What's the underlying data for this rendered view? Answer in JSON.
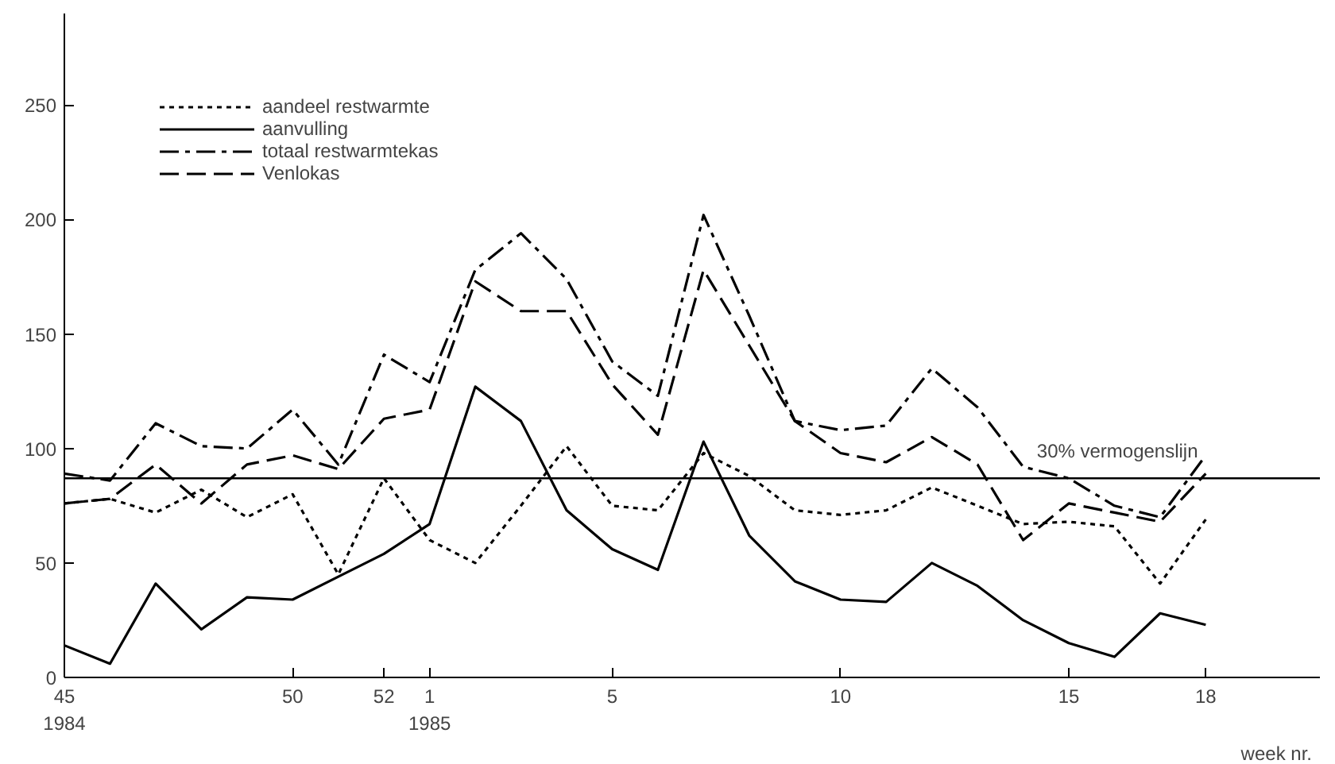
{
  "chart_data": {
    "type": "line",
    "xlabel": "week nr.",
    "categories": [
      "45\n1984",
      null,
      null,
      null,
      null,
      "50",
      null,
      "52",
      "1\n1985",
      null,
      null,
      null,
      "5",
      null,
      null,
      null,
      null,
      "10",
      null,
      null,
      null,
      null,
      "15",
      null,
      null,
      "18"
    ],
    "ylim": [
      0,
      290
    ],
    "yticks": [
      0,
      50,
      100,
      150,
      200,
      250
    ],
    "series": [
      {
        "name": "aandeel restwarmte",
        "color": "#000000",
        "line_style": "dotted",
        "values": [
          76,
          78,
          72,
          82,
          70,
          80,
          45,
          87,
          60,
          50,
          75,
          101,
          75,
          73,
          98,
          88,
          73,
          71,
          73,
          83,
          75,
          67,
          68,
          66,
          41,
          69
        ]
      },
      {
        "name": "aanvulling",
        "color": "#000000",
        "line_style": "solid",
        "values": [
          14,
          6,
          41,
          21,
          35,
          34,
          44,
          54,
          67,
          127,
          112,
          73,
          56,
          47,
          103,
          62,
          42,
          34,
          33,
          50,
          40,
          25,
          15,
          9,
          28,
          23
        ]
      },
      {
        "name": "totaal restwarmtekas",
        "color": "#000000",
        "line_style": "dashdot",
        "values": [
          89,
          86,
          111,
          101,
          100,
          117,
          93,
          141,
          129,
          178,
          194,
          174,
          138,
          123,
          202,
          158,
          112,
          108,
          110,
          135,
          118,
          92,
          87,
          75,
          70,
          97
        ]
      },
      {
        "name": "Venlokas",
        "color": "#000000",
        "line_style": "dashed",
        "values": [
          76,
          78,
          93,
          76,
          93,
          97,
          91,
          113,
          117,
          173,
          160,
          160,
          128,
          106,
          178,
          145,
          112,
          98,
          94,
          105,
          93,
          60,
          76,
          72,
          68,
          89
        ]
      }
    ],
    "ref_lines": [
      {
        "axis": "y",
        "value": 87,
        "label": "30% vermogenslijn",
        "color": "#000000"
      }
    ],
    "legend": "top left",
    "grid": false
  }
}
